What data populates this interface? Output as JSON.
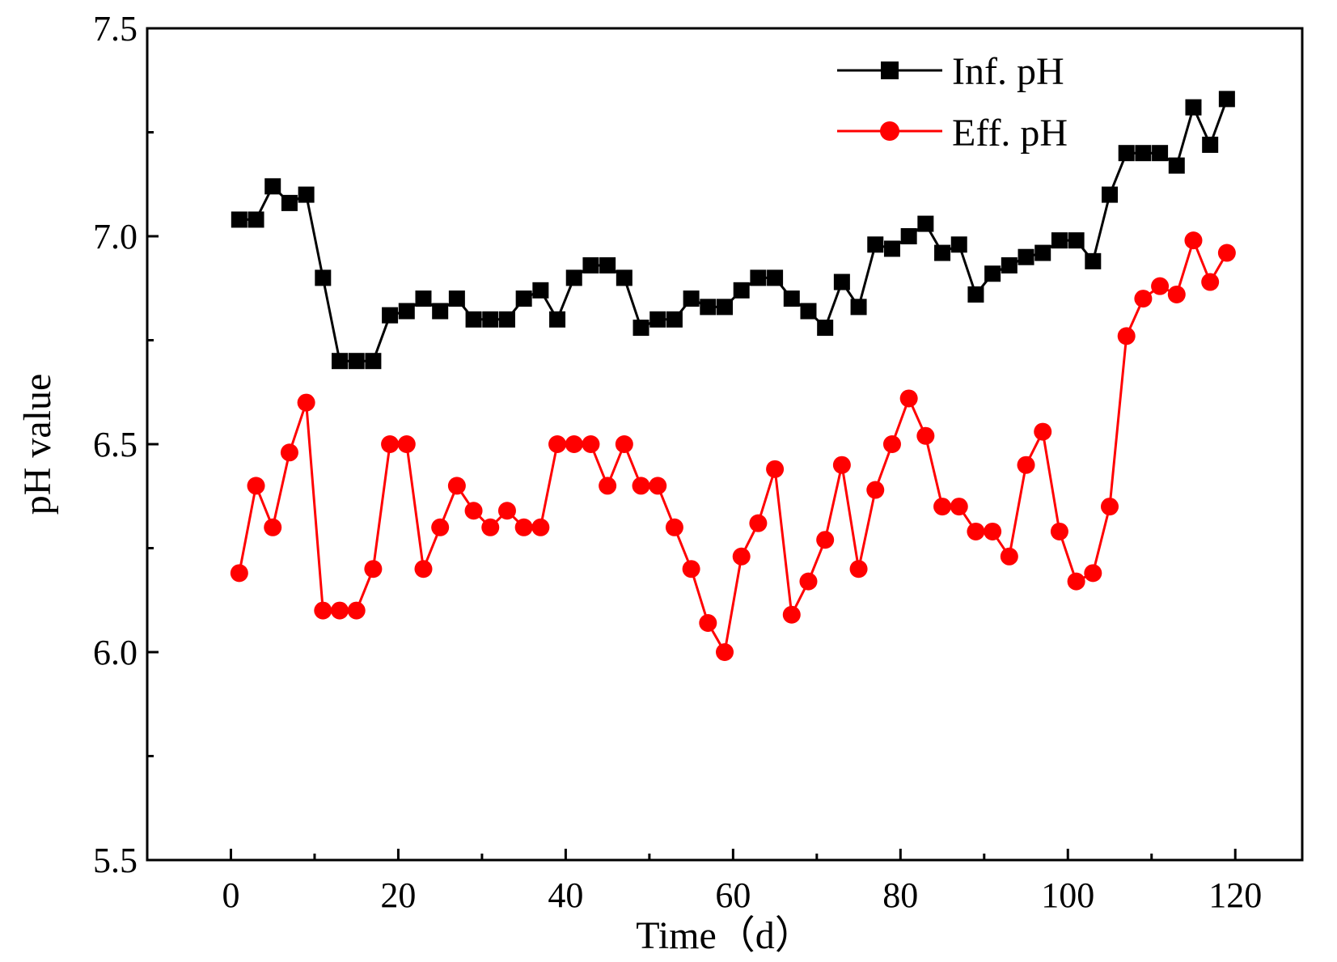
{
  "chart_data": {
    "type": "line",
    "title": "",
    "xlabel": "Time（d）",
    "ylabel": "pH value",
    "xlim": [
      -10,
      128
    ],
    "ylim": [
      5.5,
      7.5
    ],
    "x_ticks": [
      0,
      20,
      40,
      60,
      80,
      100,
      120
    ],
    "x_tick_labels": [
      "0",
      "20",
      "40",
      "60",
      "80",
      "100",
      "120"
    ],
    "y_ticks": [
      5.5,
      6.0,
      6.5,
      7.0,
      7.5
    ],
    "y_tick_labels": [
      "5.5",
      "6.0",
      "6.5",
      "7.0",
      "7.5"
    ],
    "grid": false,
    "legend_position": "top-right",
    "series": [
      {
        "name": "Inf. pH",
        "color": "#000000",
        "marker": "square",
        "x": [
          1,
          3,
          5,
          7,
          9,
          11,
          13,
          15,
          17,
          19,
          21,
          23,
          25,
          27,
          29,
          31,
          33,
          35,
          37,
          39,
          41,
          43,
          45,
          47,
          49,
          51,
          53,
          55,
          57,
          59,
          61,
          63,
          65,
          67,
          69,
          71,
          73,
          75,
          77,
          79,
          81,
          83,
          85,
          87,
          89,
          91,
          93,
          95,
          97,
          99,
          101,
          103,
          105,
          107,
          109,
          111,
          113,
          115,
          117,
          119
        ],
        "values": [
          7.04,
          7.04,
          7.12,
          7.08,
          7.1,
          6.9,
          6.7,
          6.7,
          6.7,
          6.81,
          6.82,
          6.85,
          6.82,
          6.85,
          6.8,
          6.8,
          6.8,
          6.85,
          6.87,
          6.8,
          6.9,
          6.93,
          6.93,
          6.9,
          6.78,
          6.8,
          6.8,
          6.85,
          6.83,
          6.83,
          6.87,
          6.9,
          6.9,
          6.85,
          6.82,
          6.78,
          6.89,
          6.83,
          6.98,
          6.97,
          7.0,
          7.03,
          6.96,
          6.98,
          6.86,
          6.91,
          6.93,
          6.95,
          6.96,
          6.99,
          6.99,
          6.94,
          7.1,
          7.2,
          7.2,
          7.2,
          7.17,
          7.31,
          7.22,
          7.33
        ]
      },
      {
        "name": "Eff. pH",
        "color": "#ff0000",
        "marker": "circle",
        "x": [
          1,
          3,
          5,
          7,
          9,
          11,
          13,
          15,
          17,
          19,
          21,
          23,
          25,
          27,
          29,
          31,
          33,
          35,
          37,
          39,
          41,
          43,
          45,
          47,
          49,
          51,
          53,
          55,
          57,
          59,
          61,
          63,
          65,
          67,
          69,
          71,
          73,
          75,
          77,
          79,
          81,
          83,
          85,
          87,
          89,
          91,
          93,
          95,
          97,
          99,
          101,
          103,
          105,
          107,
          109,
          111,
          113,
          115,
          117,
          119
        ],
        "values": [
          6.19,
          6.4,
          6.3,
          6.48,
          6.6,
          6.1,
          6.1,
          6.1,
          6.2,
          6.5,
          6.5,
          6.2,
          6.3,
          6.4,
          6.34,
          6.3,
          6.34,
          6.3,
          6.3,
          6.5,
          6.5,
          6.5,
          6.4,
          6.5,
          6.4,
          6.4,
          6.3,
          6.2,
          6.07,
          6.0,
          6.23,
          6.31,
          6.44,
          6.09,
          6.17,
          6.27,
          6.45,
          6.2,
          6.39,
          6.5,
          6.61,
          6.52,
          6.35,
          6.35,
          6.29,
          6.29,
          6.23,
          6.45,
          6.53,
          6.29,
          6.17,
          6.19,
          6.35,
          6.76,
          6.85,
          6.88,
          6.86,
          6.99,
          6.89,
          6.96
        ]
      }
    ]
  }
}
